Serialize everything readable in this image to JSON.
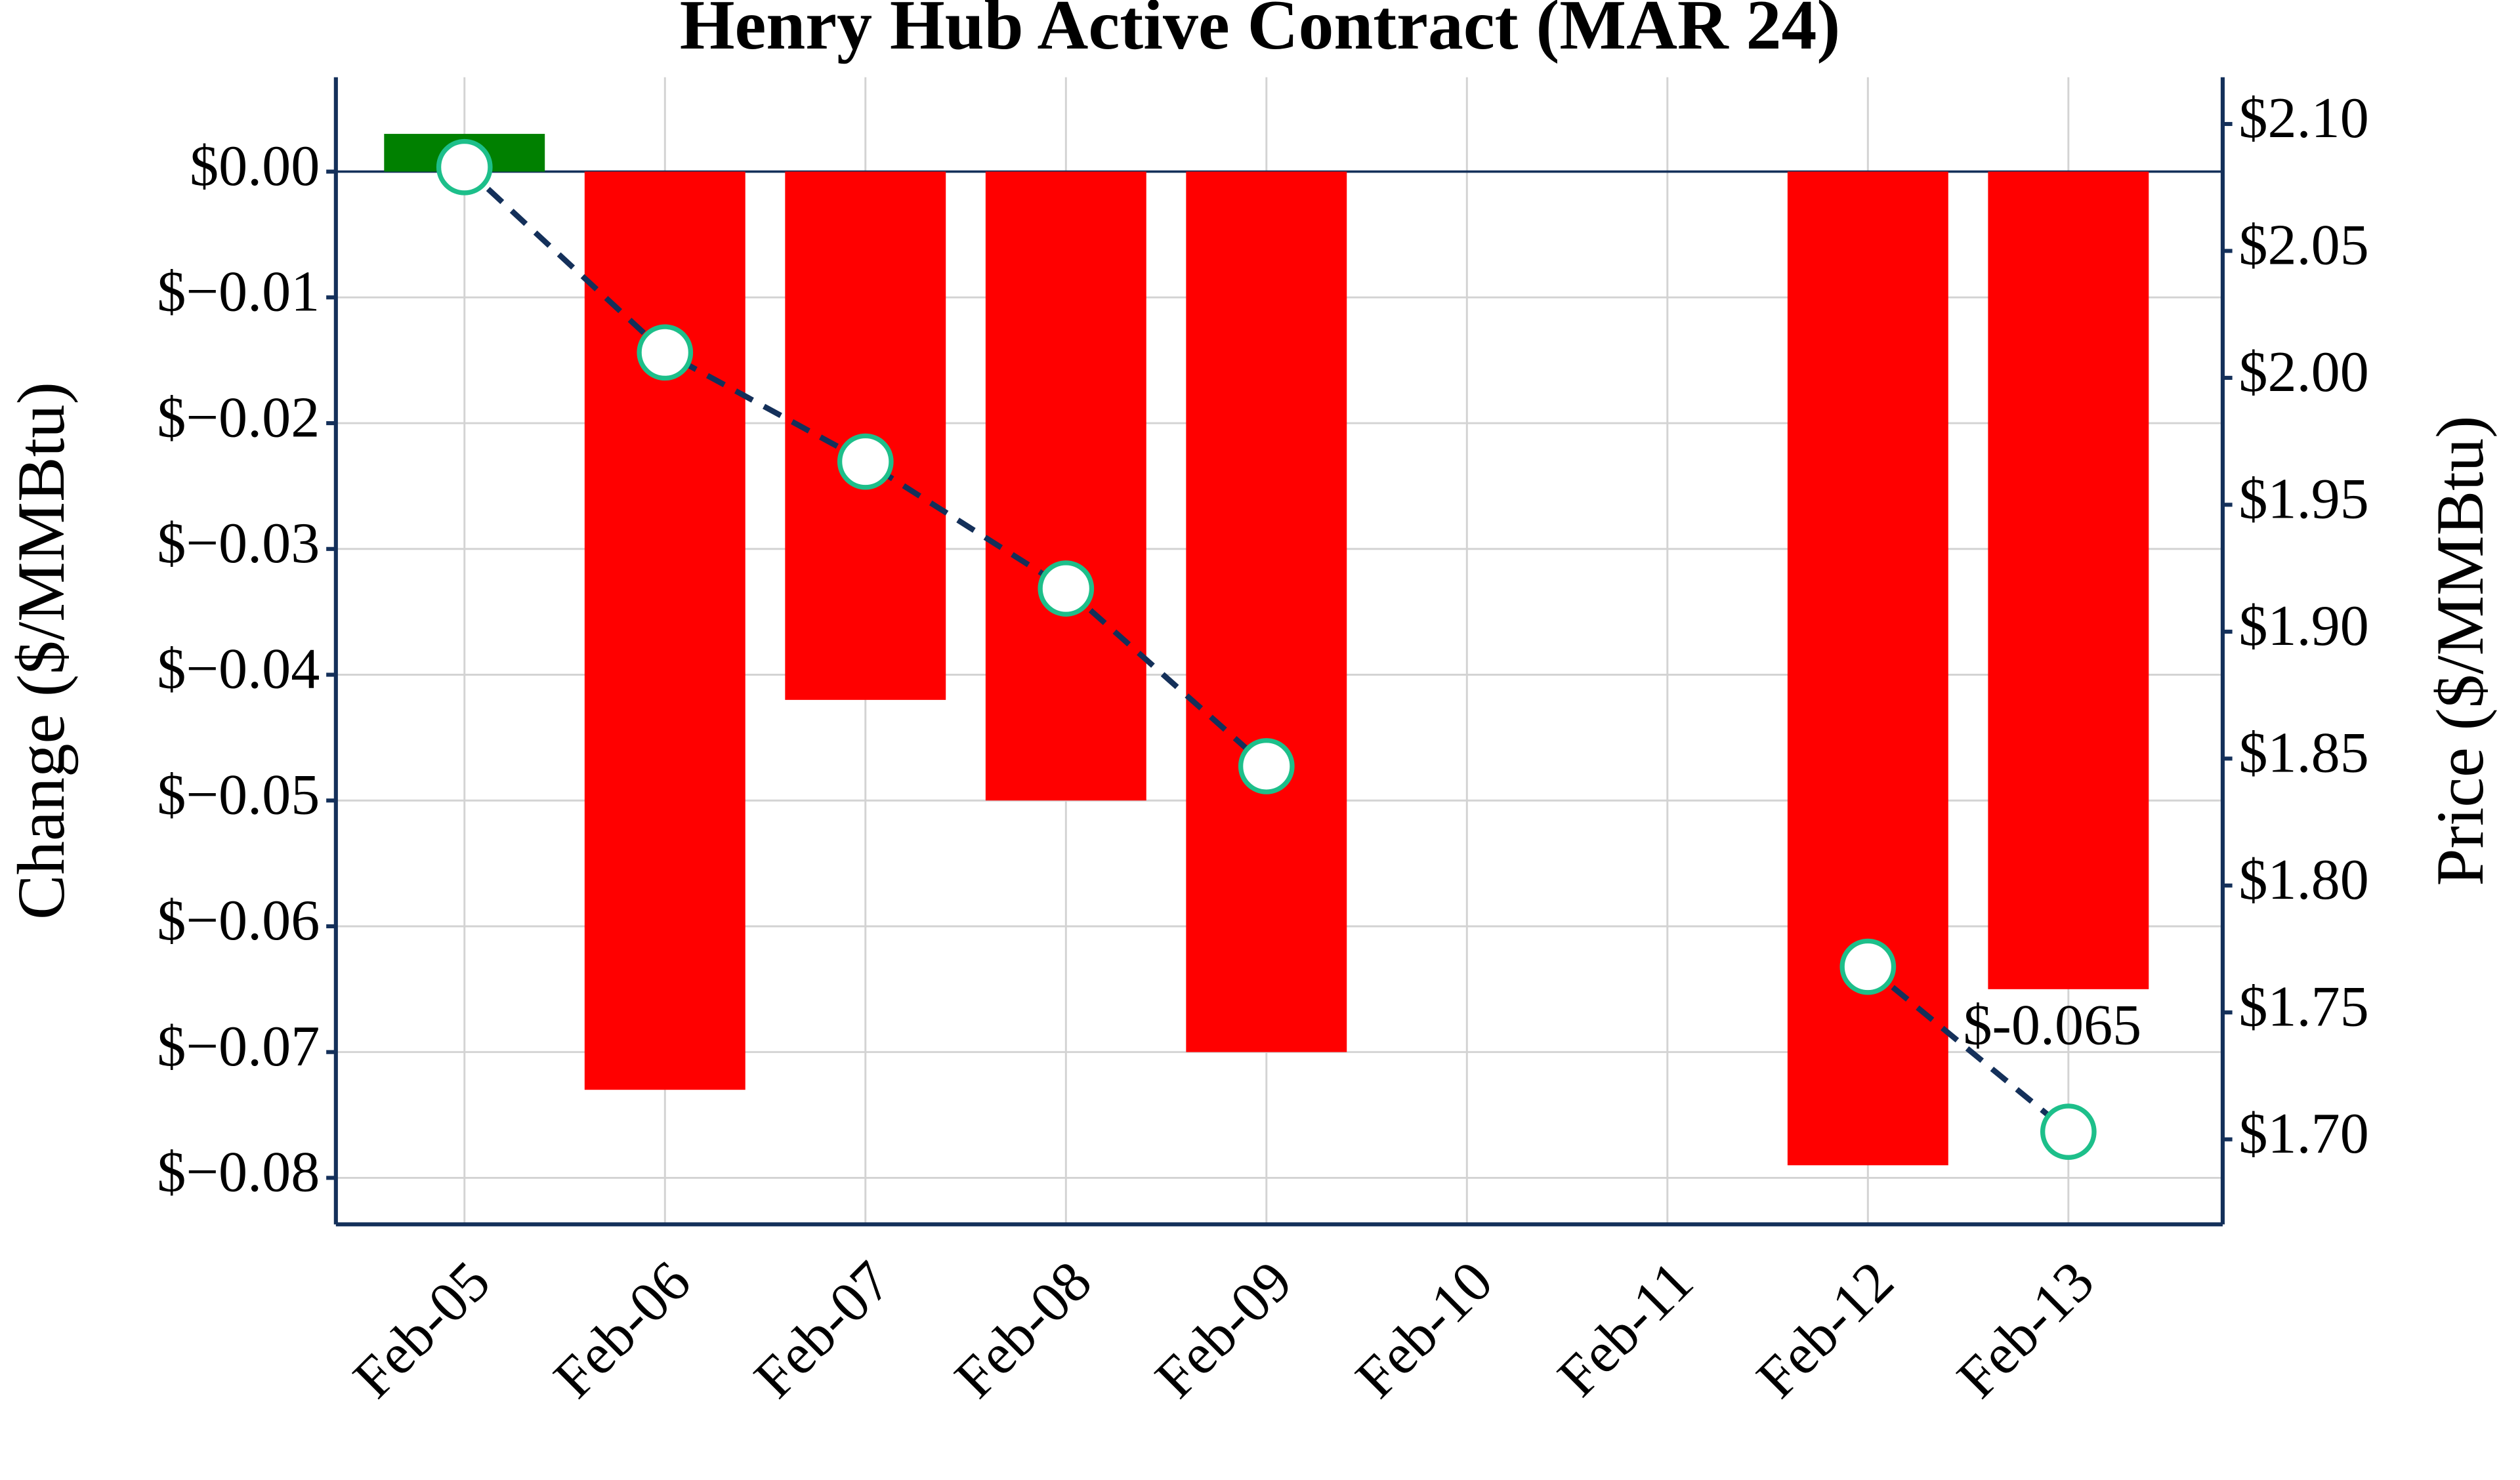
{
  "chart_data": {
    "type": "bar",
    "title": "Henry Hub Active Contract (MAR 24)",
    "categories": [
      "Feb-05",
      "Feb-06",
      "Feb-07",
      "Feb-08",
      "Feb-09",
      "Feb-10",
      "Feb-11",
      "Feb-12",
      "Feb-13"
    ],
    "ylabel": "Change ($/MMBtu)",
    "y2label": "Price ($/MMBtu)",
    "ylim": [
      -0.0837,
      0.0075
    ],
    "yticks": [
      {
        "value": 0,
        "label": "$0.00"
      },
      {
        "value": -0.01,
        "label": "$−0.01"
      },
      {
        "value": -0.02,
        "label": "$−0.02"
      },
      {
        "value": -0.03,
        "label": "$−0.03"
      },
      {
        "value": -0.04,
        "label": "$−0.04"
      },
      {
        "value": -0.05,
        "label": "$−0.05"
      },
      {
        "value": -0.06,
        "label": "$−0.06"
      },
      {
        "value": -0.07,
        "label": "$−0.07"
      },
      {
        "value": -0.08,
        "label": "$−0.08"
      }
    ],
    "y2lim": [
      1.6665,
      2.1184
    ],
    "y2ticks": [
      {
        "value": 2.1,
        "label": "$2.10"
      },
      {
        "value": 2.05,
        "label": "$2.05"
      },
      {
        "value": 2.0,
        "label": "$2.00"
      },
      {
        "value": 1.95,
        "label": "$1.95"
      },
      {
        "value": 1.9,
        "label": "$1.90"
      },
      {
        "value": 1.85,
        "label": "$1.85"
      },
      {
        "value": 1.8,
        "label": "$1.80"
      },
      {
        "value": 1.75,
        "label": "$1.75"
      },
      {
        "value": 1.7,
        "label": "$1.70"
      }
    ],
    "grid": true,
    "series": [
      {
        "type": "bar",
        "values": [
          0.003,
          -0.073,
          -0.042,
          -0.05,
          -0.07,
          null,
          null,
          -0.079,
          -0.065
        ],
        "value_labels": [
          null,
          null,
          null,
          null,
          null,
          null,
          null,
          null,
          "$-0.065"
        ],
        "color_up": "#008000",
        "color_down": "#ff0000"
      },
      {
        "type": "line",
        "axis": "y2",
        "values": [
          2.083,
          2.01,
          1.967,
          1.917,
          1.847,
          null,
          null,
          1.768,
          1.703
        ],
        "color": "#14305a",
        "dashed": true,
        "marker_fill": "#ffffff",
        "marker_edge_color": "#1dbf8a"
      }
    ]
  }
}
